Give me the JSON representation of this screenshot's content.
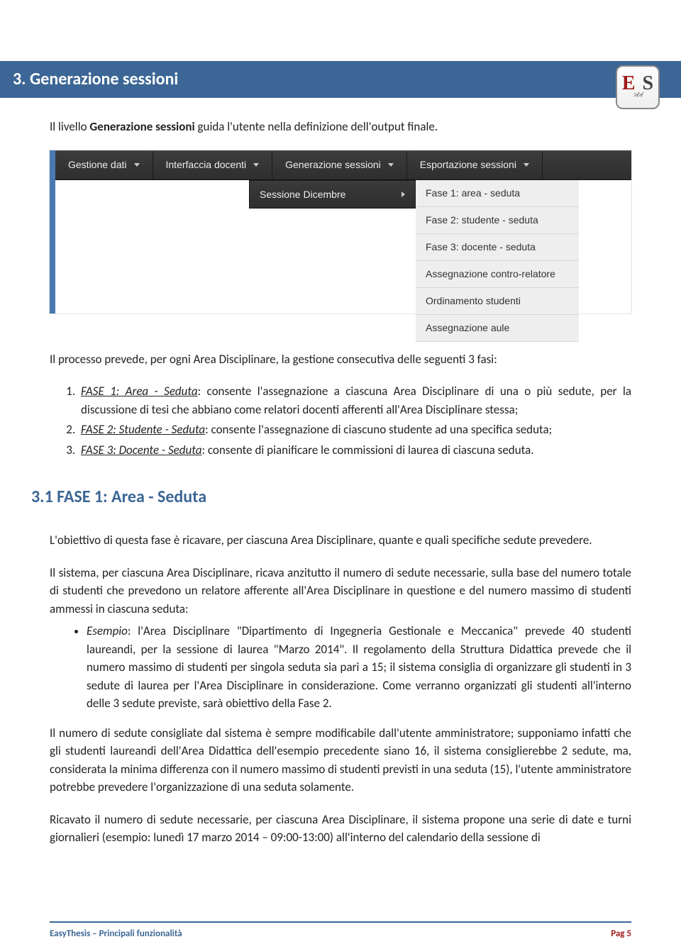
{
  "logo": {
    "top": "E",
    "bottom": "S",
    "deco": "≯≯"
  },
  "section_title": "3. Generazione sessioni",
  "intro_prefix": "Il livello ",
  "intro_bold": "Generazione sessioni",
  "intro_suffix": " guida l'utente nella definizione dell'output finale.",
  "menubar": {
    "items": [
      {
        "label": "Gestione dati"
      },
      {
        "label": "Interfaccia docenti"
      },
      {
        "label": "Generazione sessioni"
      },
      {
        "label": "Esportazione sessioni"
      }
    ]
  },
  "submenu": {
    "label": "Sessione Dicembre"
  },
  "submenu2": {
    "items": [
      {
        "label": "Fase 1: area - seduta"
      },
      {
        "label": "Fase 2: studente - seduta"
      },
      {
        "label": "Fase 3: docente - seduta"
      },
      {
        "label": "Assegnazione contro-relatore"
      },
      {
        "label": "Ordinamento studenti"
      },
      {
        "label": "Assegnazione aule"
      }
    ]
  },
  "process_intro": "Il processo prevede, per ogni Area Disciplinare, la gestione consecutiva delle seguenti 3 fasi:",
  "phases": [
    {
      "title": "FASE 1: Area - Seduta",
      "rest": ": consente l'assegnazione a ciascuna Area Disciplinare di una o più sedute, per la discussione di tesi che abbiano come relatori docenti afferenti all'Area Disciplinare stessa;"
    },
    {
      "title": "FASE 2: Studente  - Seduta",
      "rest": ": consente l'assegnazione di ciascuno studente ad una specifica seduta;"
    },
    {
      "title": "FASE 3: Docente - Seduta",
      "rest": ": consente di pianificare le commissioni di laurea di ciascuna seduta."
    }
  ],
  "subsection_title": "3.1 FASE 1: Area - Seduta",
  "para_objective": "L'obiettivo di questa fase è ricavare, per ciascuna Area Disciplinare, quante e quali specifiche sedute prevedere.",
  "para_system": "Il sistema, per ciascuna Area Disciplinare, ricava anzitutto il numero di sedute necessarie, sulla base del numero totale di studenti che prevedono un relatore afferente all'Area Disciplinare in questione e del numero massimo di studenti ammessi in ciascuna seduta:",
  "example_label": "Esempio",
  "example_rest": ": l'Area Disciplinare \"Dipartimento di Ingegneria Gestionale e Meccanica\" prevede 40 studenti laureandi, per la sessione di laurea \"Marzo 2014\". Il regolamento della Struttura Didattica prevede che il numero massimo di studenti per singola seduta sia pari a 15; il sistema consiglia di organizzare gli studenti in 3 sedute di laurea per l'Area Disciplinare in considerazione. Come verranno organizzati gli studenti all'interno delle 3 sedute previste, sarà obiettivo della Fase 2.",
  "para_admin": "Il numero di sedute consigliate dal sistema è sempre modificabile dall'utente amministratore; supponiamo infatti che gli studenti laureandi dell'Area Didattica dell'esempio precedente siano 16, il sistema consiglierebbe 2 sedute, ma, considerata la minima differenza con il numero massimo di studenti previsti in una seduta (15), l'utente amministratore potrebbe prevedere l'organizzazione di una seduta solamente.",
  "para_dates": "Ricavato il numero di sedute necessarie, per ciascuna Area Disciplinare, il sistema propone una serie di date e turni giornalieri (esempio: lunedì 17 marzo 2014 – 09:00-13:00) all'interno del calendario della sessione di",
  "footer": {
    "doc_title": "EasyThesis – Principali funzionalità",
    "page_label": "Pag 5"
  }
}
